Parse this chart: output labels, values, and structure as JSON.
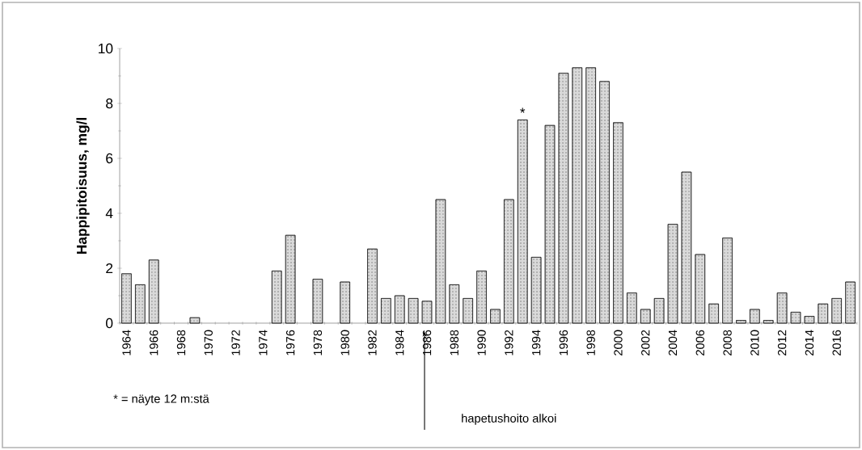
{
  "chart_data": {
    "type": "bar",
    "ylabel": "Happipitoisuus, mg/l",
    "categories": [
      "1964",
      null,
      "1966",
      null,
      "1968",
      null,
      "1970",
      null,
      "1972",
      null,
      "1974",
      null,
      "1976",
      null,
      "1978",
      null,
      "1980",
      null,
      "1982",
      null,
      "1984",
      null,
      "1986",
      null,
      "1988",
      null,
      "1990",
      null,
      "1992",
      null,
      "1994",
      null,
      "1996",
      null,
      "1998",
      null,
      "2000",
      null,
      "2002",
      null,
      "2004",
      null,
      "2006",
      null,
      "2008",
      null,
      "2010",
      null,
      "2012",
      null,
      "2014",
      null,
      "2016",
      null
    ],
    "values": [
      1.8,
      1.4,
      2.3,
      null,
      null,
      0.2,
      null,
      null,
      null,
      null,
      null,
      1.9,
      3.2,
      null,
      1.6,
      null,
      1.5,
      null,
      2.7,
      0.9,
      1.0,
      0.9,
      0.8,
      4.5,
      1.4,
      0.9,
      1.9,
      0.5,
      4.5,
      7.4,
      2.4,
      7.2,
      9.1,
      9.3,
      9.3,
      8.8,
      7.3,
      1.1,
      0.5,
      0.9,
      3.6,
      5.5,
      2.5,
      0.7,
      3.1,
      0.1,
      0.5,
      0.1,
      1.1,
      0.4,
      0.25,
      0.7,
      0.9,
      1.5
    ],
    "value_labels": [
      null,
      null,
      null,
      null,
      null,
      null,
      null,
      null,
      null,
      null,
      null,
      null,
      null,
      null,
      null,
      null,
      null,
      null,
      null,
      null,
      null,
      null,
      null,
      null,
      null,
      null,
      null,
      null,
      null,
      "*",
      null,
      null,
      null,
      null,
      null,
      null,
      null,
      null,
      null,
      null,
      null,
      null,
      null,
      null,
      null,
      null,
      null,
      null,
      null,
      null,
      null,
      null,
      null,
      null
    ],
    "color": "#d9d9d9",
    "ylim": [
      0,
      10
    ],
    "yticks": [
      0,
      2,
      4,
      6,
      8,
      10
    ],
    "annotations": [
      "* = näyte 12 m:stä",
      "hapetushoito alkoi"
    ]
  }
}
